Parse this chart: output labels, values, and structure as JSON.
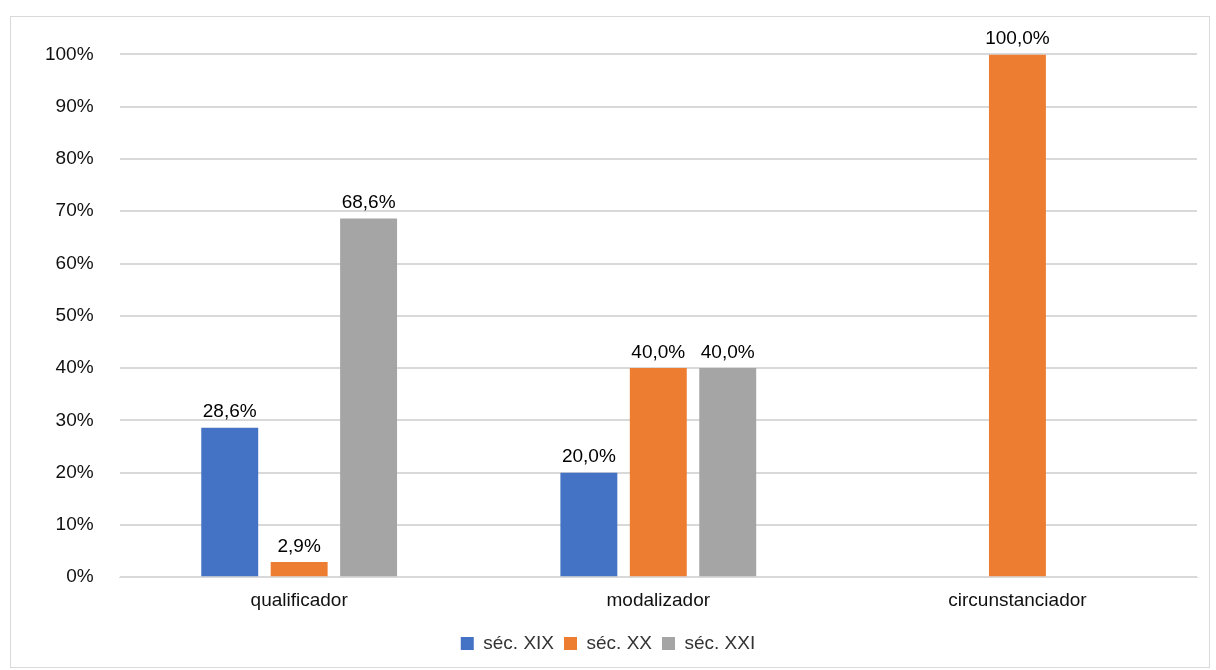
{
  "chart_data": {
    "type": "bar",
    "categories": [
      "qualificador",
      "modalizador",
      "circunstanciador"
    ],
    "series": [
      {
        "name": "séc. XIX",
        "color": "#4472c4",
        "values": [
          28.6,
          20.0,
          0
        ],
        "value_labels": [
          "28,6%",
          "20,0%",
          null
        ]
      },
      {
        "name": "séc. XX",
        "color": "#ed7d31",
        "values": [
          2.9,
          40.0,
          100.0
        ],
        "value_labels": [
          "2,9%",
          "40,0%",
          "100,0%"
        ]
      },
      {
        "name": "séc. XXI",
        "color": "#a5a5a5",
        "values": [
          68.6,
          40.0,
          0
        ],
        "value_labels": [
          "68,6%",
          "40,0%",
          null
        ]
      }
    ],
    "ylim": [
      0,
      100
    ],
    "yticks": [
      {
        "value": 0,
        "label": "0%"
      },
      {
        "value": 10,
        "label": "10%"
      },
      {
        "value": 20,
        "label": "20%"
      },
      {
        "value": 30,
        "label": "30%"
      },
      {
        "value": 40,
        "label": "40%"
      },
      {
        "value": 50,
        "label": "50%"
      },
      {
        "value": 60,
        "label": "60%"
      },
      {
        "value": 70,
        "label": "70%"
      },
      {
        "value": 80,
        "label": "80%"
      },
      {
        "value": 90,
        "label": "90%"
      },
      {
        "value": 100,
        "label": "100%"
      }
    ],
    "grid": "y",
    "legend": "bottom"
  }
}
